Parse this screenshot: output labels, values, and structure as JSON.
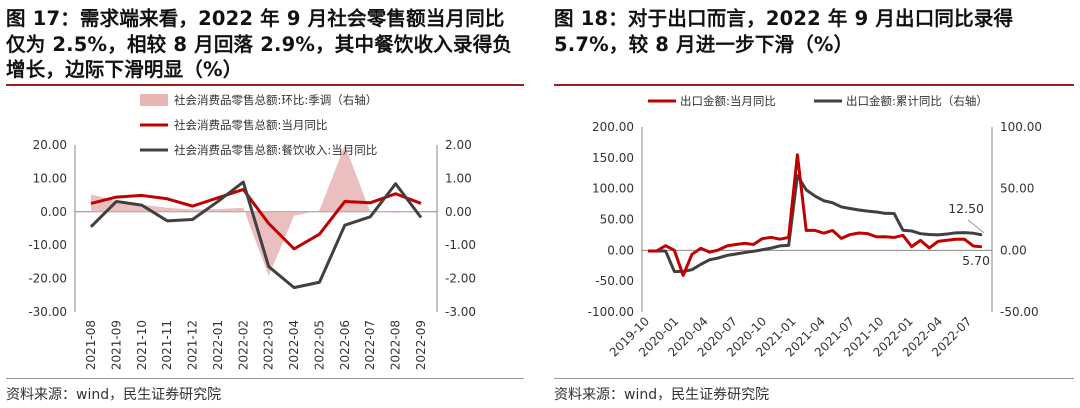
{
  "panels": [
    {
      "title": "图 17：需求端来看，2022 年 9 月社会零售额当月同比仅为 2.5%，相较 8 月回落 2.9%，其中餐饮收入录得负增长，边际下滑明显（%）",
      "source": "资料来源：wind，民生证券研究院"
    },
    {
      "title": "图 18：对于出口而言，2022 年 9 月出口同比录得 5.7%，较 8 月进一步下滑（%）",
      "source": "资料来源：wind，民生证券研究院"
    }
  ],
  "colors": {
    "red": "#c00000",
    "gray": "#404040",
    "pink": "#e8b4b4",
    "rule": "#9a1f1f"
  },
  "chart_data": [
    {
      "type": "line",
      "title": "",
      "categories": [
        "2021-08",
        "2021-09",
        "2021-10",
        "2021-11",
        "2021-12",
        "2022-01",
        "2022-02",
        "2022-03",
        "2022-04",
        "2022-05",
        "2022-06",
        "2022-07",
        "2022-08",
        "2022-09"
      ],
      "ylim": [
        -30,
        20
      ],
      "yticks": [
        "20.00",
        "10.00",
        "0.00",
        "-10.00",
        "-20.00",
        "-30.00"
      ],
      "y2lim": [
        -3,
        2
      ],
      "y2ticks": [
        "2.00",
        "1.00",
        "0.00",
        "-1.00",
        "-2.00",
        "-3.00"
      ],
      "legend_position": "top",
      "series": [
        {
          "name": "社会消费品零售总额:环比:季调（右轴）",
          "kind": "area",
          "axis": "right",
          "color": "#e8b4b4",
          "values": [
            0.52,
            0.32,
            0.21,
            0.12,
            0.07,
            0.08,
            0.12,
            -1.92,
            -0.12,
            0.04,
            2.0,
            0.0,
            -0.03,
            0.0
          ]
        },
        {
          "name": "社会消费品零售总额:当月同比",
          "kind": "line",
          "axis": "left",
          "color": "#c00000",
          "values": [
            2.5,
            4.4,
            4.9,
            3.9,
            1.7,
            4.2,
            6.7,
            -3.5,
            -11.1,
            -6.7,
            3.1,
            2.7,
            5.4,
            2.5
          ]
        },
        {
          "name": "社会消费品零售总额:餐饮收入:当月同比",
          "kind": "line",
          "axis": "left",
          "color": "#404040",
          "values": [
            -4.5,
            3.1,
            2.0,
            -2.7,
            -2.3,
            3.1,
            8.9,
            -16.4,
            -22.7,
            -21.1,
            -4.0,
            -1.5,
            8.4,
            -1.7
          ]
        }
      ]
    },
    {
      "type": "line",
      "title": "",
      "x_ticks": [
        "2019-10",
        "2020-01",
        "2020-04",
        "2020-07",
        "2020-10",
        "2021-01",
        "2021-04",
        "2021-07",
        "2021-10",
        "2022-01",
        "2022-04",
        "2022-07"
      ],
      "ylim": [
        -100,
        200
      ],
      "yticks": [
        "200.00",
        "150.00",
        "100.00",
        "50.00",
        "0.00",
        "-50.00",
        "-100.00"
      ],
      "y2lim": [
        -50,
        100
      ],
      "y2ticks": [
        "100.00",
        "50.00",
        "0.00",
        "-50.00"
      ],
      "legend_position": "top",
      "annotations": [
        "12.50",
        "5.70"
      ],
      "series": [
        {
          "name": "出口金额:当月同比",
          "axis": "left",
          "color": "#c00000",
          "values": [
            -1.0,
            -1.0,
            7.6,
            0,
            -40.6,
            -6.6,
            3.3,
            -3.0,
            0.5,
            7.2,
            9.5,
            11.4,
            9.5,
            18.9,
            21.1,
            18.1,
            20.9,
            154.9,
            32.3,
            32.3,
            27.9,
            32.2,
            19.3,
            25.6,
            28.1,
            27.1,
            21.8,
            22.0,
            20.9,
            24.3,
            6.0,
            16.1,
            3.9,
            14.5,
            16.3,
            17.9,
            18.0,
            7.1,
            5.7
          ]
        },
        {
          "name": "出口金额:累计同比（右轴）",
          "axis": "right",
          "color": "#404040",
          "values": [
            -0.5,
            -0.5,
            -0.5,
            -17.2,
            -17.2,
            -15.7,
            -11.4,
            -7.7,
            -6.2,
            -4.1,
            -3.0,
            -1.8,
            -0.8,
            0.5,
            1.8,
            3.6,
            4.0,
            60.6,
            49.0,
            44.0,
            40.2,
            38.6,
            35.2,
            33.9,
            32.7,
            31.8,
            31.1,
            30.0,
            29.9,
            16.3,
            15.7,
            13.5,
            12.8,
            12.5,
            13.2,
            14.2,
            14.4,
            13.9,
            12.5
          ]
        }
      ]
    }
  ]
}
